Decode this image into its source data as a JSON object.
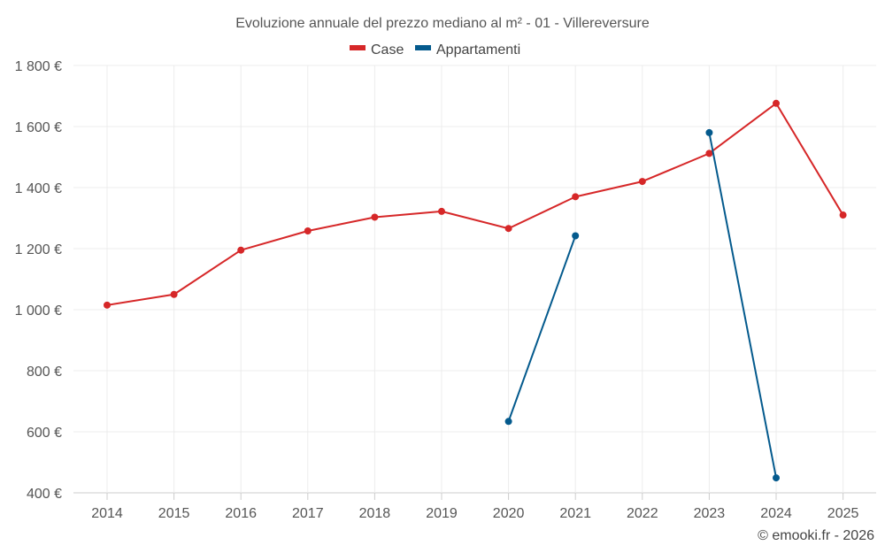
{
  "chart_data": {
    "type": "line",
    "title": "Evoluzione annuale del prezzo mediano al m² - 01 - Villereversure",
    "credit": "© emooki.fr - 2026",
    "categories": [
      "2014",
      "2015",
      "2016",
      "2017",
      "2018",
      "2019",
      "2020",
      "2021",
      "2022",
      "2023",
      "2024",
      "2025"
    ],
    "y_tick_labels": [
      "400 €",
      "600 €",
      "800 €",
      "1 000 €",
      "1 200 €",
      "1 400 €",
      "1 600 €",
      "1 800 €"
    ],
    "y_ticks": [
      400,
      600,
      800,
      1000,
      1200,
      1400,
      1600,
      1800
    ],
    "ylim": [
      400,
      1800
    ],
    "xlabel": "",
    "ylabel": "",
    "grid": true,
    "legend_position": "top-center",
    "series": [
      {
        "name": "Case",
        "color": "#d62728",
        "values": [
          1015,
          1050,
          1195,
          1258,
          1303,
          1322,
          1266,
          1370,
          1420,
          1512,
          1676,
          1310
        ]
      },
      {
        "name": "Appartamenti",
        "color": "#045a8d",
        "values": [
          null,
          null,
          null,
          null,
          null,
          null,
          634,
          1242,
          null,
          1580,
          449,
          null
        ]
      }
    ]
  }
}
